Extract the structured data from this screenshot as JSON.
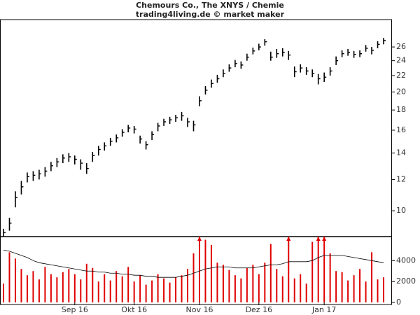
{
  "chart_data": {
    "type": "ohlc",
    "title": "Chemours Co., The XNYS / Chemie",
    "subtitle": "trading4living.de © market maker",
    "log_scale": true,
    "categories": [
      null,
      null,
      null,
      null,
      null,
      null,
      null,
      null,
      null,
      null,
      null,
      null,
      "Sep 16",
      null,
      null,
      null,
      null,
      null,
      null,
      null,
      null,
      null,
      "Okt 16",
      null,
      null,
      null,
      null,
      null,
      null,
      null,
      null,
      null,
      null,
      "Nov 16",
      null,
      null,
      null,
      null,
      null,
      null,
      null,
      null,
      null,
      "Dez 16",
      null,
      null,
      null,
      null,
      null,
      null,
      null,
      null,
      null,
      null,
      "Jan 17",
      null,
      null,
      null,
      null,
      null,
      null,
      null,
      null,
      null,
      null
    ],
    "high": [
      9.0,
      9.6,
      11.2,
      11.9,
      12.5,
      12.6,
      12.7,
      12.9,
      13.3,
      13.6,
      13.9,
      14.0,
      13.8,
      13.5,
      13.2,
      14.1,
      14.6,
      14.9,
      15.3,
      15.6,
      16.1,
      16.5,
      16.4,
      15.5,
      15.0,
      15.9,
      16.7,
      17.1,
      17.3,
      17.5,
      17.8,
      17.2,
      16.9,
      19.5,
      20.7,
      21.5,
      22.1,
      22.8,
      23.5,
      24.1,
      23.9,
      25.0,
      25.9,
      26.5,
      27.2,
      25.3,
      25.7,
      25.8,
      25.4,
      23.2,
      23.5,
      23.1,
      22.8,
      22.2,
      22.4,
      23.1,
      24.6,
      25.5,
      25.7,
      25.4,
      25.5,
      26.3,
      26.0,
      26.9,
      27.4
    ],
    "low": [
      8.6,
      8.9,
      10.2,
      11.0,
      11.8,
      11.9,
      12.0,
      12.2,
      12.6,
      12.9,
      13.2,
      13.3,
      13.1,
      12.7,
      12.4,
      13.3,
      13.8,
      14.2,
      14.6,
      14.9,
      15.4,
      15.8,
      15.7,
      14.8,
      14.3,
      15.1,
      15.9,
      16.4,
      16.6,
      16.8,
      16.9,
      16.3,
      15.9,
      18.4,
      19.7,
      20.5,
      21.1,
      21.8,
      22.5,
      23.1,
      22.9,
      24.0,
      24.9,
      25.5,
      26.2,
      24.0,
      24.4,
      24.6,
      24.1,
      21.8,
      22.4,
      22.1,
      21.8,
      20.9,
      21.2,
      22.0,
      23.4,
      24.5,
      24.7,
      24.4,
      24.5,
      25.3,
      24.9,
      25.8,
      26.4
    ],
    "close": [
      8.8,
      9.3,
      10.8,
      11.5,
      12.2,
      12.3,
      12.4,
      12.6,
      13.0,
      13.3,
      13.6,
      13.7,
      13.5,
      13.2,
      12.8,
      13.8,
      14.3,
      14.6,
      15.0,
      15.3,
      15.8,
      16.2,
      16.1,
      15.2,
      14.7,
      15.6,
      16.4,
      16.8,
      17.0,
      17.2,
      17.4,
      16.8,
      16.5,
      19.0,
      20.2,
      21.0,
      21.6,
      22.3,
      23.0,
      23.6,
      23.4,
      24.5,
      25.4,
      26.0,
      26.8,
      24.5,
      25.0,
      25.2,
      24.8,
      22.5,
      23.0,
      22.6,
      22.3,
      21.6,
      21.8,
      22.6,
      24.0,
      25.0,
      25.2,
      24.9,
      25.0,
      25.8,
      25.5,
      26.4,
      27.0
    ],
    "color": "#000000",
    "ylim": [
      8.6,
      30.5
    ],
    "yticks": [
      10,
      12,
      14,
      16,
      18,
      20,
      22,
      24,
      26
    ],
    "volume": {
      "color": "#e00000",
      "values": [
        1800,
        4800,
        4200,
        3200,
        2600,
        3000,
        2200,
        3400,
        2700,
        2400,
        2900,
        3200,
        2700,
        2200,
        3700,
        3300,
        2000,
        2700,
        2100,
        3000,
        2500,
        3400,
        2000,
        2600,
        1700,
        2100,
        2700,
        2300,
        1900,
        2400,
        2600,
        3200,
        4700,
        7000,
        6000,
        5500,
        3800,
        3600,
        3100,
        2600,
        2300,
        3300,
        3600,
        2700,
        3800,
        5600,
        3200,
        2500,
        7000,
        2300,
        2700,
        1800,
        5800,
        7000,
        7000,
        4700,
        3000,
        2900,
        2100,
        2600,
        3200,
        2000,
        4800,
        2200,
        2400
      ],
      "average": [
        5000,
        4900,
        4700,
        4500,
        4300,
        4000,
        3800,
        3700,
        3600,
        3500,
        3400,
        3300,
        3200,
        3100,
        3000,
        3000,
        2900,
        2900,
        2800,
        2800,
        2700,
        2700,
        2600,
        2600,
        2500,
        2500,
        2400,
        2400,
        2400,
        2400,
        2500,
        2600,
        2800,
        3000,
        3200,
        3300,
        3400,
        3400,
        3400,
        3300,
        3300,
        3300,
        3300,
        3400,
        3500,
        3600,
        3600,
        3700,
        3900,
        3900,
        3900,
        3900,
        4000,
        4300,
        4500,
        4500,
        4500,
        4500,
        4400,
        4300,
        4200,
        4100,
        4000,
        3900,
        3800
      ],
      "average_color": "#000000",
      "ylim": [
        0,
        6300
      ],
      "yticks": [
        0,
        2000,
        4000
      ]
    }
  }
}
